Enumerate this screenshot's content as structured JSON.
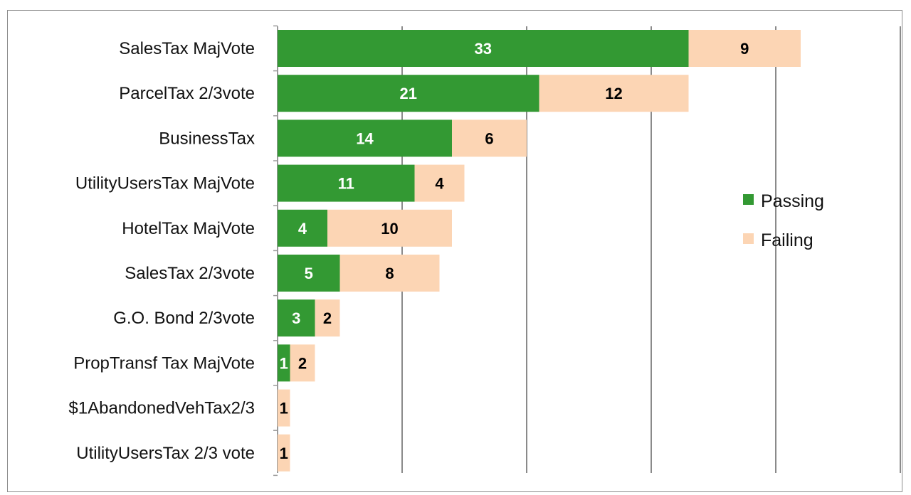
{
  "chart_data": {
    "type": "bar",
    "orientation": "horizontal",
    "stacked": true,
    "categories": [
      "SalesTax MajVote",
      "ParcelTax 2/3vote",
      "BusinessTax",
      "UtilityUsersTax MajVote",
      "HotelTax MajVote",
      "SalesTax 2/3vote",
      "G.O. Bond 2/3vote",
      "PropTransf Tax MajVote",
      "$1AbandonedVehTax2/3",
      "UtilityUsersTax 2/3 vote"
    ],
    "series": [
      {
        "name": "Passing",
        "color": "#339933",
        "label_color": "#ffffff",
        "values": [
          33,
          21,
          14,
          11,
          4,
          5,
          3,
          1,
          0,
          0
        ]
      },
      {
        "name": "Failing",
        "color": "#fcd5b4",
        "label_color": "#000000",
        "values": [
          9,
          12,
          6,
          4,
          10,
          8,
          2,
          2,
          1,
          1
        ]
      }
    ],
    "xlim": [
      0,
      50
    ],
    "x_grid_step": 10,
    "grid": true,
    "x_tick_labels_shown": false,
    "legend_position": "right"
  }
}
